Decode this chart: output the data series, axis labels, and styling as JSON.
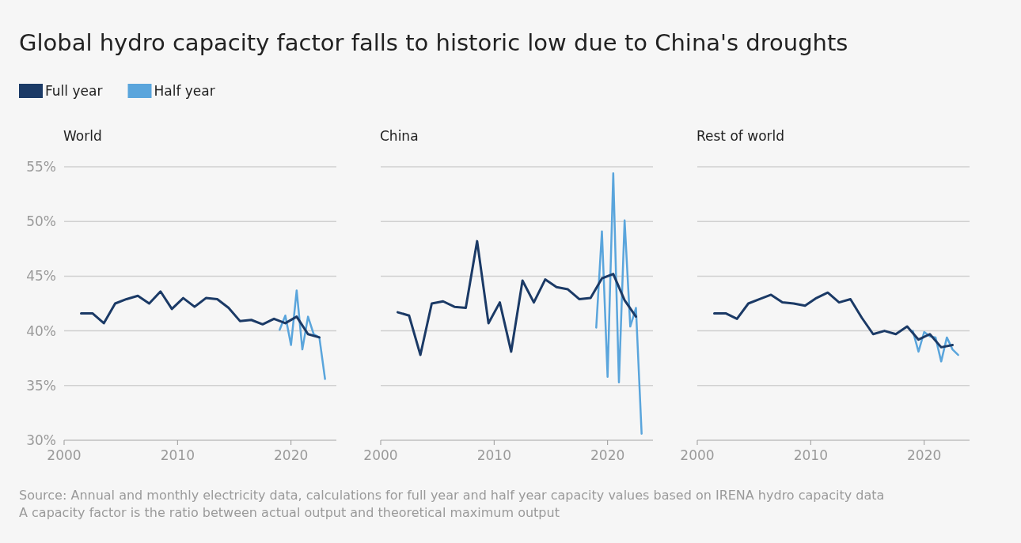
{
  "chart_data": [
    {
      "type": "line",
      "title": "Global hydro capacity factor falls to historic low due to China's droughts",
      "subtitle": "World",
      "legend": "top left",
      "grid": "y",
      "xlim": [
        2000,
        2024
      ],
      "xticks": [
        2000,
        2010,
        2020
      ],
      "ylim": [
        30,
        55
      ],
      "yticks": [
        {
          "value": 30,
          "label": "30%"
        },
        {
          "value": 35,
          "label": "35%"
        },
        {
          "value": 40,
          "label": "40%"
        },
        {
          "value": 45,
          "label": "45%"
        },
        {
          "value": 50,
          "label": "50%"
        },
        {
          "value": 55,
          "label": "55%"
        }
      ],
      "annotations": [
        "Source: Annual and monthly electricity data, calculations for full year and half year capacity values based on IRENA hydro capacity data",
        "A capacity factor is the ratio between actual output and theoretical maximum output"
      ],
      "series": [
        {
          "name": "Full year",
          "color": "#1b3a66",
          "x": [
            2001.5,
            2002.5,
            2003.5,
            2004.5,
            2005.5,
            2006.5,
            2007.5,
            2008.5,
            2009.5,
            2010.5,
            2011.5,
            2012.5,
            2013.5,
            2014.5,
            2015.5,
            2016.5,
            2017.5,
            2018.5,
            2019.5,
            2020.5,
            2021.5,
            2022.5
          ],
          "values": [
            41.6,
            41.6,
            40.7,
            42.5,
            42.9,
            43.2,
            42.5,
            43.6,
            42.0,
            43.0,
            42.2,
            43.0,
            42.9,
            42.1,
            40.9,
            41.0,
            40.6,
            41.1,
            40.7,
            41.3,
            39.7,
            39.4
          ]
        },
        {
          "name": "Half year",
          "color": "#5aa5dc",
          "x": [
            2019,
            2019.5,
            2020,
            2020.5,
            2021,
            2021.5,
            2022,
            2022.5,
            2023
          ],
          "values": [
            40.1,
            41.4,
            38.7,
            43.7,
            38.3,
            41.3,
            39.7,
            39.4,
            35.6
          ]
        }
      ]
    },
    {
      "type": "line",
      "subtitle": "China",
      "grid": "y",
      "tick_labels": "x",
      "xlim": [
        2000,
        2024
      ],
      "xticks": [
        2000,
        2010,
        2020
      ],
      "ylim": [
        30,
        55
      ],
      "yticks": [
        30,
        35,
        40,
        45,
        50,
        55
      ],
      "series": [
        {
          "color": "#1b3a66",
          "x": [
            2001.5,
            2002.5,
            2003.5,
            2004.5,
            2005.5,
            2006.5,
            2007.5,
            2008.5,
            2009.5,
            2010.5,
            2011.5,
            2012.5,
            2013.5,
            2014.5,
            2015.5,
            2016.5,
            2017.5,
            2018.5,
            2019.5,
            2020.5,
            2021.5,
            2022.5
          ],
          "values": [
            41.7,
            41.4,
            37.8,
            42.5,
            42.7,
            42.2,
            42.1,
            48.2,
            40.7,
            42.6,
            38.1,
            44.6,
            42.6,
            44.7,
            44.0,
            43.8,
            42.9,
            43.0,
            44.8,
            45.2,
            42.8,
            41.3
          ]
        },
        {
          "color": "#5aa5dc",
          "x": [
            2019,
            2019.5,
            2020,
            2020.5,
            2021,
            2021.5,
            2022,
            2022.5,
            2023
          ],
          "values": [
            40.3,
            49.1,
            35.8,
            54.4,
            35.3,
            50.1,
            40.4,
            42.1,
            30.6
          ]
        }
      ]
    },
    {
      "type": "line",
      "subtitle": "Rest of world",
      "grid": "y",
      "tick_labels": "x",
      "xlim": [
        2000,
        2024
      ],
      "xticks": [
        2000,
        2010,
        2020
      ],
      "ylim": [
        30,
        55
      ],
      "yticks": [
        30,
        35,
        40,
        45,
        50,
        55
      ],
      "series": [
        {
          "color": "#1b3a66",
          "x": [
            2001.5,
            2002.5,
            2003.5,
            2004.5,
            2005.5,
            2006.5,
            2007.5,
            2008.5,
            2009.5,
            2010.5,
            2011.5,
            2012.5,
            2013.5,
            2014.5,
            2015.5,
            2016.5,
            2017.5,
            2018.5,
            2019.5,
            2020.5,
            2021.5,
            2022.5
          ],
          "values": [
            41.6,
            41.6,
            41.1,
            42.5,
            42.9,
            43.3,
            42.6,
            42.5,
            42.3,
            43.0,
            43.5,
            42.6,
            42.9,
            41.2,
            39.7,
            40.0,
            39.7,
            40.4,
            39.2,
            39.7,
            38.5,
            38.7
          ]
        },
        {
          "color": "#5aa5dc",
          "x": [
            2019,
            2019.5,
            2020,
            2020.5,
            2021,
            2021.5,
            2022,
            2022.5,
            2023
          ],
          "values": [
            40.0,
            38.1,
            39.9,
            39.5,
            39.4,
            37.2,
            39.4,
            38.3,
            37.8
          ]
        }
      ]
    }
  ]
}
